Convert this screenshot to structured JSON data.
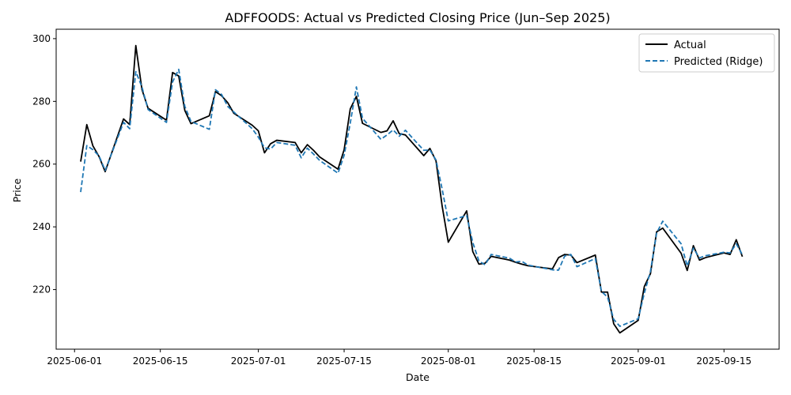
{
  "chart_data": {
    "type": "line",
    "title": "ADFFOODS: Actual vs Predicted Closing Price (Jun–Sep 2025)",
    "xlabel": "Date",
    "ylabel": "Price",
    "x_ticks": [
      "2025-06-01",
      "2025-06-15",
      "2025-07-01",
      "2025-07-15",
      "2025-08-01",
      "2025-08-15",
      "2025-09-01",
      "2025-09-15"
    ],
    "y_ticks": [
      220,
      240,
      260,
      280,
      300
    ],
    "xlim": [
      "2025-05-29",
      "2025-09-24"
    ],
    "ylim": [
      201,
      303
    ],
    "grid": false,
    "legend_position": "top-right",
    "x": [
      "2025-06-02",
      "2025-06-03",
      "2025-06-04",
      "2025-06-05",
      "2025-06-06",
      "2025-06-09",
      "2025-06-10",
      "2025-06-11",
      "2025-06-12",
      "2025-06-13",
      "2025-06-16",
      "2025-06-17",
      "2025-06-18",
      "2025-06-19",
      "2025-06-20",
      "2025-06-23",
      "2025-06-24",
      "2025-06-25",
      "2025-06-26",
      "2025-06-27",
      "2025-06-30",
      "2025-07-01",
      "2025-07-02",
      "2025-07-03",
      "2025-07-04",
      "2025-07-07",
      "2025-07-08",
      "2025-07-09",
      "2025-07-10",
      "2025-07-11",
      "2025-07-14",
      "2025-07-15",
      "2025-07-16",
      "2025-07-17",
      "2025-07-18",
      "2025-07-21",
      "2025-07-22",
      "2025-07-23",
      "2025-07-24",
      "2025-07-25",
      "2025-07-28",
      "2025-07-29",
      "2025-07-30",
      "2025-07-31",
      "2025-08-01",
      "2025-08-04",
      "2025-08-05",
      "2025-08-06",
      "2025-08-07",
      "2025-08-08",
      "2025-08-11",
      "2025-08-12",
      "2025-08-13",
      "2025-08-14",
      "2025-08-18",
      "2025-08-19",
      "2025-08-20",
      "2025-08-21",
      "2025-08-22",
      "2025-08-25",
      "2025-08-26",
      "2025-08-27",
      "2025-08-28",
      "2025-08-29",
      "2025-09-01",
      "2025-09-02",
      "2025-09-03",
      "2025-09-04",
      "2025-09-05",
      "2025-09-08",
      "2025-09-09",
      "2025-09-10",
      "2025-09-11",
      "2025-09-12",
      "2025-09-15",
      "2025-09-16",
      "2025-09-17",
      "2025-09-18"
    ],
    "series": [
      {
        "name": "Actual",
        "color": "#000000",
        "style": "solid",
        "values": [
          260.8,
          272.6,
          265.8,
          262.4,
          257.6,
          274.4,
          272.6,
          297.8,
          283.8,
          277.8,
          274.0,
          289.2,
          288.1,
          277.1,
          272.9,
          275.4,
          283.1,
          281.8,
          279.6,
          276.2,
          272.4,
          270.6,
          263.6,
          266.5,
          267.6,
          266.9,
          263.6,
          266.2,
          264.4,
          262.3,
          258.4,
          264.6,
          277.6,
          281.6,
          273.0,
          270.1,
          270.6,
          273.8,
          269.7,
          269.3,
          262.7,
          265.0,
          261.0,
          246.6,
          235.1,
          245.1,
          232.1,
          228.1,
          228.4,
          230.6,
          229.4,
          228.7,
          228.1,
          227.6,
          226.6,
          230.2,
          231.2,
          231.0,
          228.6,
          231.0,
          219.2,
          219.2,
          209.1,
          206.2,
          210.2,
          221.0,
          225.1,
          238.4,
          239.6,
          231.6,
          226.1,
          234.0,
          229.4,
          230.2,
          231.7,
          231.2,
          235.9,
          230.5
        ]
      },
      {
        "name": "Predicted (Ridge)",
        "color": "#1f77b4",
        "style": "dashed",
        "values": [
          251.1,
          265.9,
          264.6,
          262.6,
          258.0,
          273.3,
          271.3,
          289.5,
          284.6,
          277.4,
          273.3,
          286.2,
          290.2,
          278.4,
          273.6,
          271.1,
          283.7,
          282.2,
          278.4,
          276.6,
          271.3,
          268.6,
          265.2,
          264.8,
          266.9,
          266.0,
          262.0,
          265.1,
          263.2,
          261.2,
          257.1,
          262.8,
          273.1,
          284.6,
          274.6,
          267.9,
          269.3,
          270.9,
          268.9,
          270.8,
          264.4,
          264.5,
          261.3,
          252.0,
          241.9,
          243.6,
          235.0,
          229.1,
          227.9,
          231.2,
          230.0,
          228.8,
          229.0,
          227.8,
          226.3,
          226.2,
          230.7,
          231.2,
          227.3,
          229.9,
          219.4,
          217.6,
          210.5,
          208.3,
          210.7,
          218.9,
          225.8,
          238.0,
          241.8,
          234.6,
          227.5,
          233.2,
          230.1,
          230.8,
          231.9,
          231.7,
          234.6,
          231.1
        ]
      }
    ]
  }
}
